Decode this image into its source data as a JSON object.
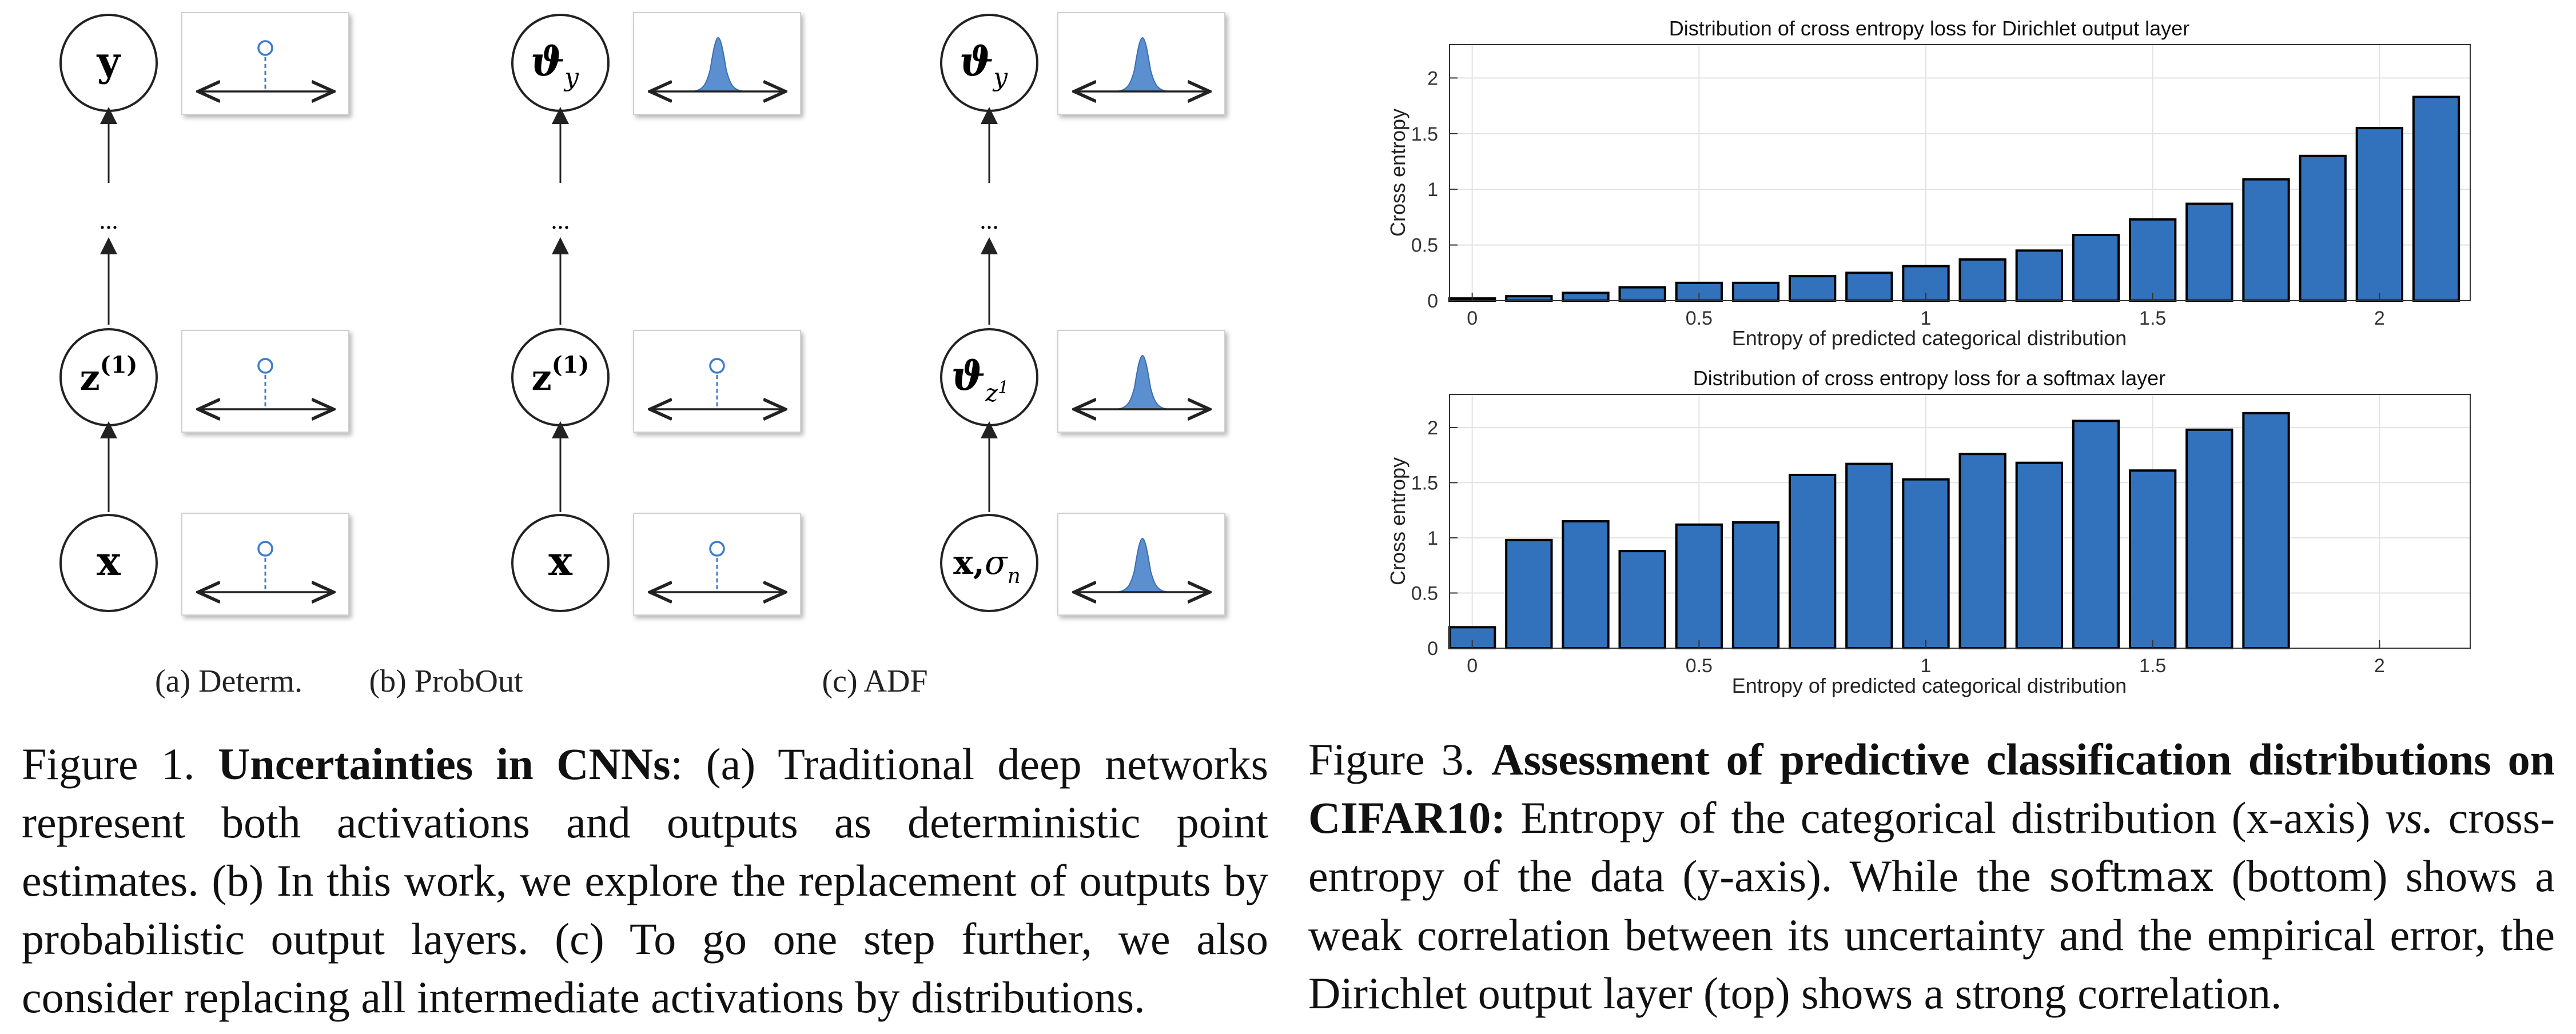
{
  "figure1": {
    "columns": [
      {
        "top_node": "y",
        "middle_node": "z(1)",
        "bottom_node": "x",
        "subcaption": "(a) Determ."
      },
      {
        "top_node": "ϑy",
        "middle_node": "z(1)",
        "bottom_node": "x",
        "subcaption": "(b) ProbOut"
      },
      {
        "top_node": "ϑy",
        "middle_node": "ϑz1",
        "bottom_node": "x,σn",
        "subcaption": "(c) ADF"
      }
    ],
    "ellipsis": "...",
    "caption": {
      "prefix": "Figure 1.",
      "title": "Uncertainties in CNNs",
      "text_a_marker": "(a)",
      "text_a": "Traditional deep networks represent both activations and outputs as deterministic point estimates.",
      "text_b_marker": "(b)",
      "text_b": "In this work, we explore the replacement of outputs by probabilistic output layers.",
      "text_c_marker": "(c)",
      "text_c": "To go one step further, we also consider replacing all intermediate activations by distributions."
    }
  },
  "figure3": {
    "caption": {
      "prefix": "Figure 3.",
      "title": "Assessment of predictive classification distributions on CIFAR10:",
      "text1": "Entropy of the categorical distribution (x-axis)",
      "vs": "vs.",
      "text2": "cross-entropy of the data (y-axis). While the",
      "softmax": "softmax",
      "text3": "(bottom) shows a weak correlation between its uncertainty and the empirical error, the Dirichlet output layer (top) shows a strong correlation."
    }
  },
  "colors": {
    "bar": "#3272bd",
    "node_point": "#3d7cc9",
    "gauss_fill": "#5b8fd0"
  },
  "chart_data": [
    {
      "type": "bar",
      "title": "Distribution of cross entropy loss for Dirichlet output layer",
      "xlabel": "Entropy of predicted categorical distribution",
      "ylabel": "Cross entropy",
      "xlim": [
        -0.05,
        2.2
      ],
      "ylim": [
        0,
        2.3
      ],
      "xticks": [
        "0",
        "0.5",
        "1",
        "1.5",
        "2"
      ],
      "xtick_values": [
        0,
        0.5,
        1,
        1.5,
        2
      ],
      "yticks": [
        "0",
        "0.5",
        "1",
        "1.5",
        "2"
      ],
      "ytick_values": [
        0,
        0.5,
        1,
        1.5,
        2
      ],
      "grid": true,
      "x": [
        0,
        0.125,
        0.25,
        0.375,
        0.5,
        0.625,
        0.75,
        0.875,
        1.0,
        1.125,
        1.25,
        1.375,
        1.5,
        1.625,
        1.75,
        1.875,
        2.0,
        2.125
      ],
      "values": [
        0.02,
        0.04,
        0.07,
        0.12,
        0.16,
        0.16,
        0.22,
        0.25,
        0.31,
        0.37,
        0.45,
        0.59,
        0.73,
        0.87,
        1.09,
        1.3,
        1.55,
        1.83
      ]
    },
    {
      "type": "bar",
      "title": "Distribution of cross entropy loss for a softmax layer",
      "xlabel": "Entropy of predicted categorical distribution",
      "ylabel": "Cross entropy",
      "xlim": [
        -0.05,
        2.2
      ],
      "ylim": [
        0,
        2.3
      ],
      "xticks": [
        "0",
        "0.5",
        "1",
        "1.5",
        "2"
      ],
      "xtick_values": [
        0,
        0.5,
        1,
        1.5,
        2
      ],
      "yticks": [
        "0",
        "0.5",
        "1",
        "1.5",
        "2"
      ],
      "ytick_values": [
        0,
        0.5,
        1,
        1.5,
        2
      ],
      "grid": true,
      "x": [
        0,
        0.125,
        0.25,
        0.375,
        0.5,
        0.625,
        0.75,
        0.875,
        1.0,
        1.125,
        1.25,
        1.375,
        1.5,
        1.625,
        1.75
      ],
      "values": [
        0.19,
        0.98,
        1.15,
        0.88,
        1.12,
        1.14,
        1.57,
        1.67,
        1.53,
        1.76,
        1.68,
        2.06,
        1.61,
        1.98,
        2.13
      ]
    }
  ]
}
